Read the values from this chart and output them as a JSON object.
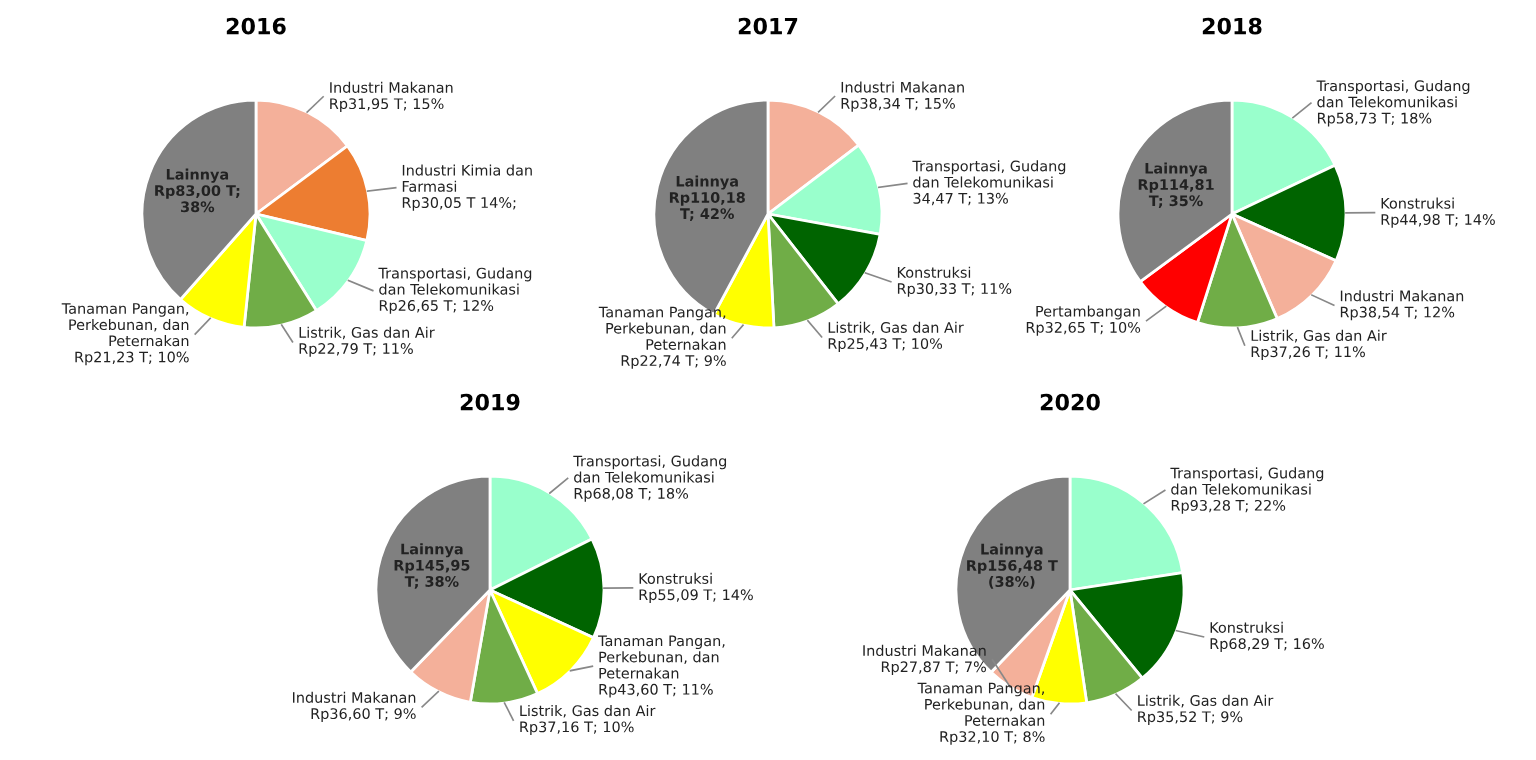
{
  "chart_data": [
    {
      "type": "pie",
      "title": "2016",
      "categories": [
        "Industri Makanan",
        "Industri Kimia dan Farmasi",
        "Transportasi, Gudang dan Telekomunikasi",
        "Listrik, Gas dan Air",
        "Tanaman Pangan, Perkebunan, dan Peternakan",
        "Lainnya"
      ],
      "values": [
        31.95,
        30.05,
        26.65,
        22.79,
        21.23,
        83.0
      ],
      "colors": [
        "#f4b09a",
        "#ed7d31",
        "#99ffcc",
        "#70ad47",
        "#ffff00",
        "#808080"
      ],
      "value_labels": [
        "Rp31,95 T; 15%",
        "Rp30,05 T 14%;",
        "Rp26,65 T; 12%",
        "Rp22,79 T; 11%",
        "Rp21,23 T; 10%",
        "Rp83,00 T; 38%"
      ]
    },
    {
      "type": "pie",
      "title": "2017",
      "categories": [
        "Industri Makanan",
        "Transportasi, Gudang dan Telekomunikasi",
        "Konstruksi",
        "Listrik, Gas dan Air",
        "Tanaman Pangan, Perkebunan, dan Peternakan",
        "Lainnya"
      ],
      "values": [
        38.34,
        34.47,
        30.33,
        25.43,
        22.74,
        110.18
      ],
      "colors": [
        "#f4b09a",
        "#99ffcc",
        "#006400",
        "#70ad47",
        "#ffff00",
        "#808080"
      ],
      "value_labels": [
        "Rp38,34 T; 15%",
        "34,47 T; 13%",
        "Rp30,33 T; 11%",
        "Rp25,43 T; 10%",
        "Rp22,74 T; 9%",
        "Rp110,18 T; 42%"
      ]
    },
    {
      "type": "pie",
      "title": "2018",
      "categories": [
        "Transportasi, Gudang dan Telekomunikasi",
        "Konstruksi",
        "Industri Makanan",
        "Listrik, Gas dan Air",
        "Pertambangan",
        "Lainnya"
      ],
      "values": [
        58.73,
        44.98,
        38.54,
        37.26,
        32.65,
        114.81
      ],
      "colors": [
        "#99ffcc",
        "#006400",
        "#f4b09a",
        "#70ad47",
        "#ff0000",
        "#808080"
      ],
      "value_labels": [
        "Rp58,73 T; 18%",
        "Rp44,98 T; 14%",
        "Rp38,54 T; 12%",
        "Rp37,26 T; 11%",
        "Rp32,65 T; 10%",
        "Rp114,81 T; 35%"
      ]
    },
    {
      "type": "pie",
      "title": "2019",
      "categories": [
        "Transportasi, Gudang dan Telekomunikasi",
        "Konstruksi",
        "Tanaman Pangan, Perkebunan, dan Peternakan",
        "Listrik, Gas dan Air",
        "Industri Makanan",
        "Lainnya"
      ],
      "values": [
        68.08,
        55.09,
        43.6,
        37.16,
        36.6,
        145.95
      ],
      "colors": [
        "#99ffcc",
        "#006400",
        "#ffff00",
        "#70ad47",
        "#f4b09a",
        "#808080"
      ],
      "value_labels": [
        "Rp68,08 T; 18%",
        "Rp55,09 T; 14%",
        "Rp43,60 T; 11%",
        "Rp37,16 T; 10%",
        "Rp36,60 T; 9%",
        "Rp145,95 T; 38%"
      ]
    },
    {
      "type": "pie",
      "title": "2020",
      "categories": [
        "Transportasi, Gudang dan Telekomunikasi",
        "Konstruksi",
        "Listrik, Gas dan Air",
        "Tanaman Pangan, Perkebunan, dan Peternakan",
        "Industri Makanan",
        "Lainnya"
      ],
      "values": [
        93.28,
        68.29,
        35.52,
        32.1,
        27.87,
        156.48
      ],
      "colors": [
        "#99ffcc",
        "#006400",
        "#70ad47",
        "#ffff00",
        "#f4b09a",
        "#808080"
      ],
      "value_labels": [
        "Rp93,28 T; 22%",
        "Rp68,29 T; 16%",
        "Rp35,52 T; 9%",
        "Rp32,10 T; 8%",
        "Rp27,87 T; 7%",
        "Rp156,48 T (38%)"
      ]
    }
  ]
}
